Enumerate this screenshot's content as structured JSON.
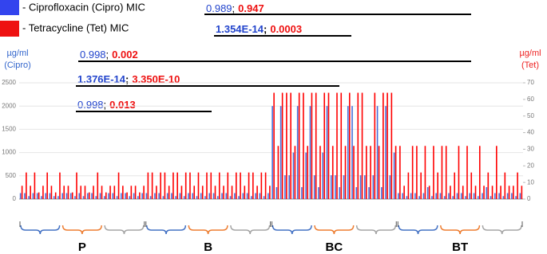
{
  "chart_data": {
    "type": "bar",
    "legend": [
      "- Ciprofloxacin (Cipro) MIC",
      "- Tetracycline (Tet) MIC"
    ],
    "y_label": [
      "µg/ml",
      "(Cipro)"
    ],
    "y2_label": [
      "µg/ml",
      "(Tet)"
    ],
    "ylim": [
      0,
      2500
    ],
    "yticks": [
      0,
      500,
      1000,
      1500,
      2000,
      2500
    ],
    "y2lim": [
      0,
      70
    ],
    "y2ticks": [
      0,
      10,
      20,
      30,
      40,
      50,
      60,
      70
    ],
    "groups": [
      "P",
      "B",
      "BC",
      "BT"
    ],
    "separator": ";",
    "annotations": [
      {
        "cipro": "0.989",
        "tet": "0.947",
        "bold": false
      },
      {
        "cipro": "1.354E-14",
        "tet": "0.0003",
        "bold": true
      },
      {
        "cipro": "0.998",
        "tet": "0.002",
        "bold": false
      },
      {
        "cipro": "1.376E-14",
        "tet": "3.350E-10",
        "bold": true
      },
      {
        "cipro": "0.998",
        "tet": "0.013",
        "bold": false
      }
    ],
    "categories": [
      null,
      null,
      null,
      null,
      null,
      null,
      null,
      null,
      null,
      null,
      null,
      null,
      null,
      null,
      null,
      null,
      null,
      null,
      null,
      null,
      null,
      null,
      null,
      null,
      null,
      null,
      null,
      null,
      null,
      null,
      null,
      null,
      null,
      null,
      null,
      null,
      null,
      null,
      null,
      null,
      null,
      null,
      null,
      null,
      null,
      null,
      null,
      null,
      null,
      null,
      null,
      null,
      null,
      null,
      null,
      null,
      null,
      null,
      null,
      null,
      null,
      null,
      null,
      null,
      null,
      null,
      null,
      null,
      null,
      null,
      null,
      null,
      null,
      null,
      null,
      null,
      null,
      null,
      null,
      null,
      null,
      null,
      null,
      null,
      null,
      null,
      null,
      null,
      null,
      null,
      null,
      null,
      null,
      null,
      null,
      null,
      null,
      null,
      null,
      null,
      null,
      null,
      null,
      null,
      null,
      null,
      null,
      null,
      null,
      null,
      null,
      null,
      null,
      null,
      null,
      null,
      null,
      null,
      null,
      null
    ],
    "series": [
      {
        "name": "Cipro",
        "color": "#4a6fd8",
        "values": [
          128,
          128,
          64,
          128,
          128,
          64,
          128,
          128,
          64,
          64,
          128,
          128,
          128,
          64,
          128,
          64,
          128,
          128,
          64,
          128,
          64,
          128,
          128,
          64,
          128,
          128,
          64,
          128,
          64,
          128,
          128,
          64,
          128,
          128,
          64,
          128,
          128,
          64,
          128,
          64,
          128,
          128,
          64,
          128,
          64,
          128,
          128,
          64,
          128,
          128,
          64,
          128,
          64,
          128,
          128,
          64,
          128,
          128,
          64,
          128,
          2000,
          256,
          2000,
          512,
          512,
          1000,
          2000,
          256,
          1000,
          2000,
          512,
          256,
          1000,
          2000,
          512,
          512,
          256,
          512,
          2000,
          2000,
          256,
          512,
          512,
          256,
          512,
          2000,
          256,
          2000,
          512,
          1000,
          128,
          128,
          64,
          128,
          128,
          64,
          128,
          256,
          64,
          128,
          128,
          64,
          128,
          64,
          128,
          128,
          64,
          128,
          128,
          64,
          128,
          256,
          64,
          128,
          128,
          64,
          128,
          128,
          64,
          128
        ]
      },
      {
        "name": "Tet",
        "color": "#ff0000",
        "axis": "y2",
        "values": [
          8,
          16,
          8,
          16,
          4,
          8,
          16,
          8,
          4,
          16,
          8,
          8,
          4,
          16,
          8,
          8,
          4,
          8,
          16,
          8,
          4,
          8,
          8,
          16,
          8,
          4,
          8,
          8,
          4,
          8,
          16,
          16,
          8,
          16,
          16,
          8,
          16,
          16,
          8,
          16,
          16,
          8,
          16,
          8,
          16,
          16,
          8,
          16,
          8,
          16,
          8,
          16,
          16,
          8,
          16,
          16,
          8,
          16,
          16,
          8,
          64,
          32,
          64,
          64,
          64,
          32,
          64,
          64,
          32,
          64,
          64,
          32,
          64,
          64,
          32,
          64,
          64,
          32,
          64,
          32,
          64,
          64,
          32,
          32,
          64,
          32,
          64,
          64,
          64,
          32,
          32,
          8,
          16,
          32,
          32,
          16,
          32,
          8,
          32,
          16,
          32,
          32,
          8,
          16,
          32,
          8,
          32,
          16,
          8,
          32,
          8,
          16,
          8,
          32,
          8,
          16,
          8,
          8,
          16,
          8
        ]
      }
    ]
  }
}
